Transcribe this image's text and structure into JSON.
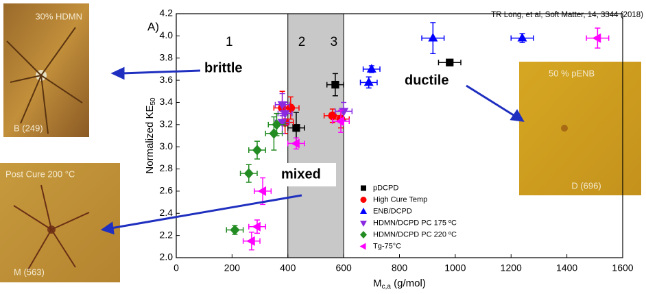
{
  "chart_data": {
    "type": "scatter",
    "panel_label": "A)",
    "citation": "TR Long, et al, Soft Matter, 14, 3344 (2018)",
    "xlabel": {
      "main": "M",
      "sub": "c,a",
      "unit": " (g/mol)"
    },
    "ylabel": {
      "main": "Normalized KE",
      "sub": "50"
    },
    "xlim": [
      0,
      1600
    ],
    "ylim": [
      2.0,
      4.2
    ],
    "xticks": [
      0,
      200,
      400,
      600,
      800,
      1000,
      1200,
      1400,
      1600
    ],
    "yticks": [
      {
        "value": 2.0,
        "label": "2.0"
      },
      2.2,
      2.4,
      2.6,
      2.8,
      {
        "value": 3.0,
        "label": "3.0"
      },
      3.2,
      3.4,
      3.6,
      3.8,
      {
        "value": 4.0,
        "label": "4.0"
      },
      4.2
    ],
    "shaded_region": [
      400,
      600
    ],
    "region_labels": [
      "1",
      "2",
      "3"
    ],
    "legend": "lower right",
    "series": [
      {
        "name": "pDCPD",
        "color": "#000000",
        "marker": "square",
        "x": [
          980,
          570,
          430
        ],
        "values": [
          3.76,
          3.56,
          3.17
        ],
        "xerr": [
          40,
          30,
          30
        ],
        "yerr": [
          0.02,
          0.1,
          0.14
        ]
      },
      {
        "name": "High Cure Temp",
        "color": "#ff0000",
        "marker": "circle",
        "x": [
          380,
          410,
          390,
          560,
          590
        ],
        "values": [
          3.35,
          3.35,
          3.22,
          3.28,
          3.25
        ],
        "xerr": [
          30,
          30,
          30,
          30,
          30
        ],
        "yerr": [
          0.15,
          0.1,
          0.1,
          0.06,
          0.08
        ]
      },
      {
        "name": "ENB/DCPD",
        "color": "#0000ff",
        "marker": "triangle-up",
        "x": [
          920,
          1240,
          700,
          690
        ],
        "values": [
          3.98,
          3.98,
          3.7,
          3.58
        ],
        "xerr": [
          40,
          40,
          30,
          30
        ],
        "yerr": [
          0.14,
          0.04,
          0.03,
          0.05
        ]
      },
      {
        "name": "HDMN/DCPD PC 175 ºC",
        "color": "#8a2be2",
        "marker": "triangle-down",
        "x": [
          380,
          390,
          380,
          600
        ],
        "values": [
          3.38,
          3.3,
          3.22,
          3.32
        ],
        "xerr": [
          25,
          25,
          25,
          30
        ],
        "yerr": [
          0.1,
          0.1,
          0.1,
          0.08
        ]
      },
      {
        "name": "HDMN/DCPD PC 220 ºC",
        "color": "#228b22",
        "marker": "diamond",
        "x": [
          290,
          260,
          350,
          360,
          210
        ],
        "values": [
          2.97,
          2.76,
          3.12,
          3.2,
          2.25
        ],
        "xerr": [
          30,
          30,
          30,
          30,
          30
        ],
        "yerr": [
          0.08,
          0.08,
          0.15,
          0.1,
          0.04
        ]
      },
      {
        "name": "Tg-75°C",
        "color": "#ff00ff",
        "marker": "triangle-left",
        "x": [
          1510,
          590,
          430,
          310,
          290,
          270
        ],
        "values": [
          3.98,
          3.23,
          3.03,
          2.6,
          2.28,
          2.15
        ],
        "xerr": [
          40,
          30,
          30,
          30,
          30,
          30
        ],
        "yerr": [
          0.09,
          0.1,
          0.05,
          0.12,
          0.06,
          0.08
        ]
      }
    ]
  },
  "annotations": {
    "brittle": "brittle",
    "ductile": "ductile",
    "mixed": "mixed"
  },
  "photos": [
    {
      "title": "30% HDMN",
      "caption": "B (249)"
    },
    {
      "title": "Post Cure 200 °C",
      "caption": "M (563)"
    },
    {
      "title": "50 % pENB",
      "caption": "D (696)"
    }
  ]
}
